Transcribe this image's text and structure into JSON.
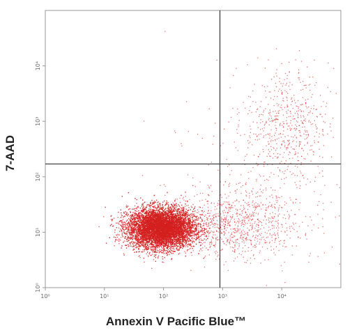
{
  "chart_data": {
    "type": "scatter",
    "title": "",
    "xlabel": "Annexin V Pacific Blue™",
    "ylabel": "7-AAD",
    "x_scale": "log",
    "y_scale": "log",
    "xlim": [
      1,
      100000
    ],
    "ylim": [
      1,
      100000
    ],
    "x_ticks": [
      "10⁰",
      "10¹",
      "10²",
      "10³",
      "10⁴"
    ],
    "y_ticks": [
      "10⁰",
      "10¹",
      "10²",
      "10³",
      "10⁴"
    ],
    "quadrant_gates": {
      "x": 900,
      "y": 170
    },
    "point_color": "#d42020",
    "populations": [
      {
        "center_x": 90,
        "center_y": 12,
        "spread_x_decades": 0.28,
        "spread_y_decades": 0.18,
        "events": 11000
      },
      {
        "center_x": 1500,
        "center_y": 14,
        "spread_x_decades": 0.55,
        "spread_y_decades": 0.3,
        "events": 900
      },
      {
        "center_x": 12000,
        "center_y": 900,
        "spread_x_decades": 0.35,
        "spread_y_decades": 0.55,
        "events": 550
      },
      {
        "center_x": 4000,
        "center_y": 60,
        "spread_x_decades": 0.8,
        "spread_y_decades": 0.8,
        "events": 250
      }
    ]
  }
}
